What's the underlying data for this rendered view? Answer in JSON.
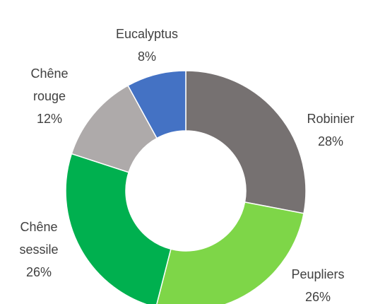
{
  "chart_data": {
    "type": "donut",
    "categories": [
      "Robinier",
      "Peupliers",
      "Chêne sessile",
      "Chêne rouge",
      "Eucalyptus"
    ],
    "values": [
      28,
      26,
      26,
      12,
      8
    ],
    "value_labels": [
      "28%",
      "26%",
      "26%",
      "12%",
      "8%"
    ],
    "colors": [
      "#767171",
      "#7ed648",
      "#00b04f",
      "#aeaaaa",
      "#4472c4"
    ]
  }
}
